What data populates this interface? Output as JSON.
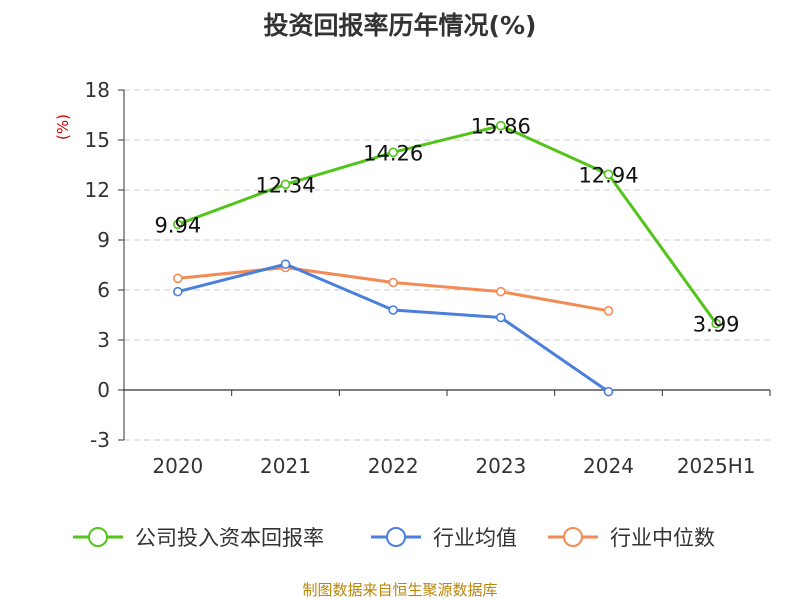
{
  "chart_data": {
    "type": "line",
    "title": "投资回报率历年情况(%)",
    "ylabel": "(%)",
    "categories": [
      "2020",
      "2021",
      "2022",
      "2023",
      "2024",
      "2025H1"
    ],
    "ylim": [
      -3,
      18
    ],
    "yticks": [
      "18",
      "15",
      "12",
      "9",
      "6",
      "3",
      "0",
      "-3"
    ],
    "grid": true,
    "legend_position": "bottom",
    "series": [
      {
        "name": "公司投入资本回报率",
        "color": "#52c41a",
        "values": [
          9.94,
          12.34,
          14.26,
          15.86,
          12.94,
          3.99
        ],
        "labels": [
          "9.94",
          "12.34",
          "14.26",
          "15.86",
          "12.94",
          "3.99"
        ]
      },
      {
        "name": "行业均值",
        "color": "#4a7fdc",
        "values": [
          5.9,
          7.55,
          4.8,
          4.35,
          -0.1,
          null
        ]
      },
      {
        "name": "行业中位数",
        "color": "#f28b54",
        "values": [
          6.7,
          7.35,
          6.45,
          5.9,
          4.75,
          null
        ]
      }
    ],
    "source": "制图数据来自恒生聚源数据库"
  }
}
